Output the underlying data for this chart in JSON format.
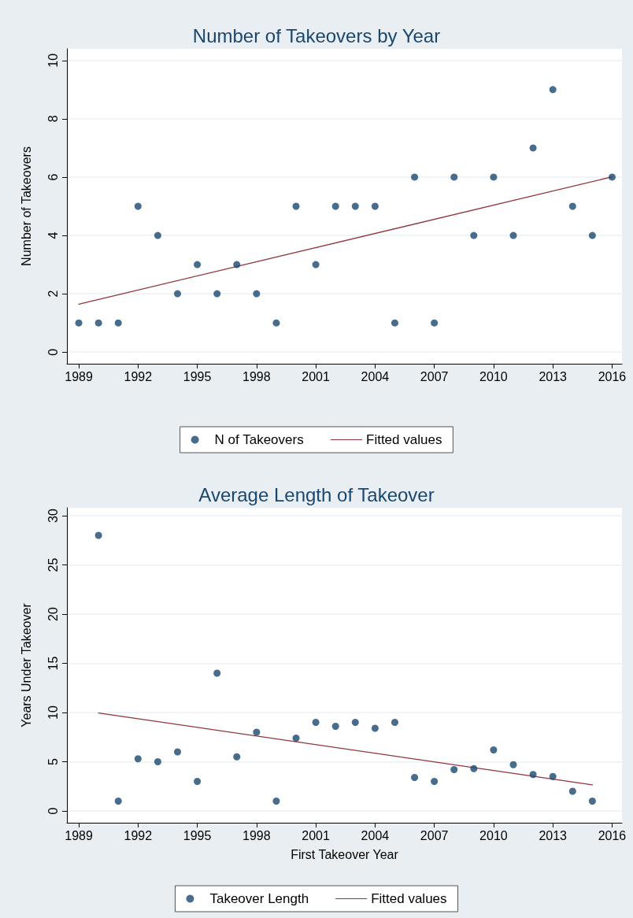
{
  "chart_data": [
    {
      "type": "scatter",
      "title": "Number of Takeovers by Year",
      "ylabel": "Number of Takeovers",
      "xlim": [
        1988.4,
        2016.5
      ],
      "xticks": [
        1989,
        1992,
        1995,
        1998,
        2001,
        2004,
        2007,
        2010,
        2013,
        2016
      ],
      "ylim": [
        -0.4,
        10.4
      ],
      "yticks": [
        0,
        2,
        4,
        6,
        8,
        10
      ],
      "grid": "y",
      "legend": "bottom",
      "series": [
        {
          "name": "N of Takeovers",
          "color": "#1a476f",
          "marker": "circle",
          "x": [
            1989,
            1990,
            1991,
            1992,
            1993,
            1994,
            1995,
            1996,
            1997,
            1998,
            1999,
            2000,
            2001,
            2002,
            2003,
            2004,
            2005,
            2006,
            2007,
            2008,
            2009,
            2010,
            2011,
            2012,
            2013,
            2014,
            2015,
            2016
          ],
          "values": [
            1,
            1,
            1,
            5,
            4,
            2,
            3,
            2,
            3,
            2,
            1,
            5,
            3,
            5,
            5,
            5,
            1,
            6,
            1,
            6,
            4,
            6,
            4,
            7,
            9,
            5,
            4,
            6
          ]
        },
        {
          "name": "Fitted values",
          "type": "line",
          "color": "#90353b",
          "marker": "none",
          "x": [
            1989,
            2016
          ],
          "values": [
            1.64,
            6.01
          ]
        }
      ]
    },
    {
      "type": "scatter",
      "title": "Average Length of Takeover",
      "xlabel": "First Takeover Year",
      "ylabel": "Years Under Takeover",
      "xlim": [
        1988.4,
        2016.5
      ],
      "xticks": [
        1989,
        1992,
        1995,
        1998,
        2001,
        2004,
        2007,
        2010,
        2013,
        2016
      ],
      "ylim": [
        -1.2,
        30.8
      ],
      "yticks": [
        0,
        5,
        10,
        15,
        20,
        25,
        30
      ],
      "grid": "y",
      "legend": "bottom",
      "series": [
        {
          "name": "Takeover Length",
          "color": "#1a476f",
          "marker": "circle",
          "x": [
            1990,
            1991,
            1992,
            1993,
            1994,
            1995,
            1996,
            1997,
            1998,
            1999,
            2000,
            2001,
            2002,
            2003,
            2004,
            2005,
            2006,
            2007,
            2008,
            2009,
            2010,
            2011,
            2012,
            2013,
            2014,
            2015
          ],
          "values": [
            28,
            1,
            5.3,
            5,
            6,
            3,
            14,
            5.5,
            8,
            1,
            7.4,
            9,
            8.6,
            9,
            8.4,
            9,
            3.4,
            3,
            4.2,
            4.3,
            6.2,
            4.7,
            3.7,
            3.5,
            2,
            1
          ]
        },
        {
          "name": "Fitted values",
          "type": "line",
          "color": "#90353b",
          "marker": "none",
          "x": [
            1990,
            2015
          ],
          "values": [
            9.95,
            2.65
          ]
        }
      ]
    }
  ]
}
